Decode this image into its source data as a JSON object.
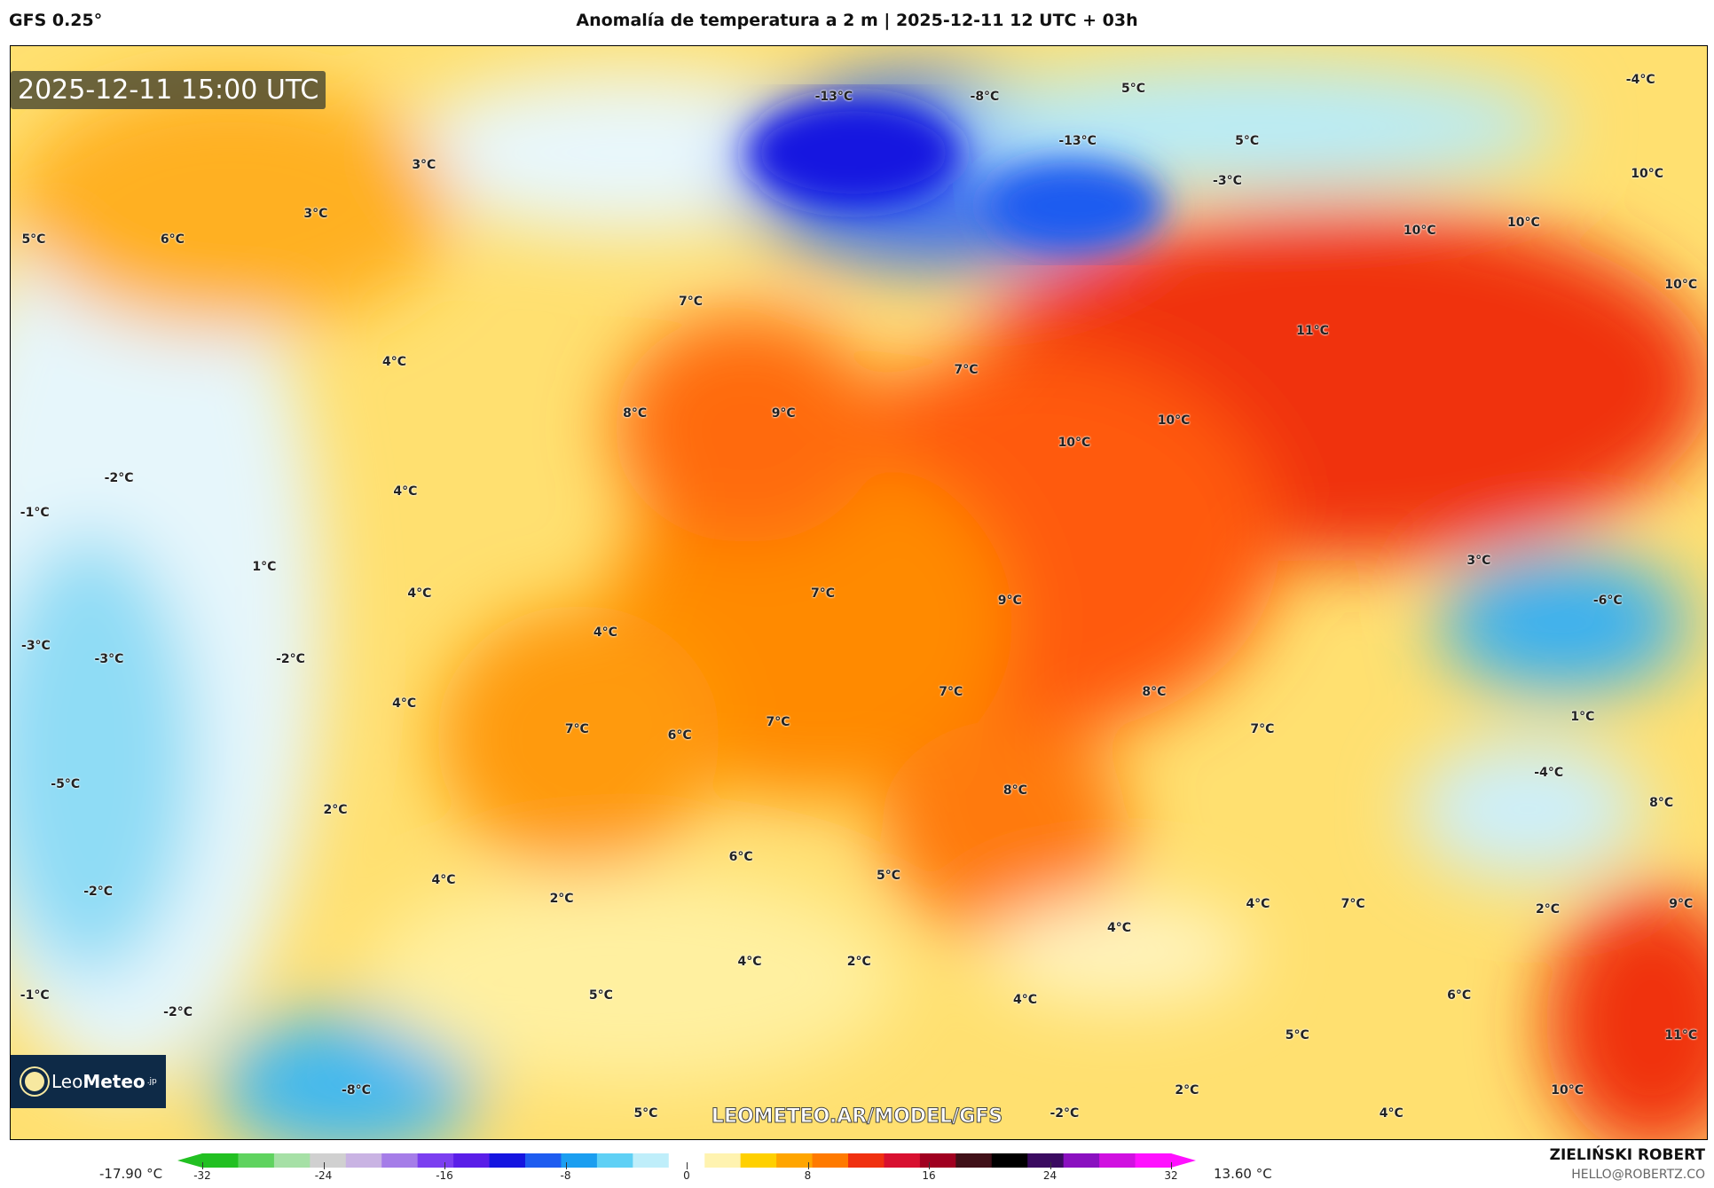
{
  "header": {
    "model": "GFS 0.25°",
    "title": "Anomalía de temperatura a 2 m | 2025-12-11 12 UTC + 03h"
  },
  "map": {
    "valid_time": "2025-12-11 15:00 UTC",
    "watermark": "LEOMETEO.AR/MODEL/GFS",
    "logo": {
      "text_light": "Leo",
      "text_bold": "Meteo",
      "suffix": ".jp"
    },
    "labels": [
      "-13°C",
      "-8°C",
      "5°C",
      "-4°C",
      "-13°C",
      "5°C",
      "-3°C",
      "10°C",
      "3°C",
      "3°C",
      "6°C",
      "5°C",
      "10°C",
      "10°C",
      "10°C",
      "7°C",
      "11°C",
      "4°C",
      "7°C",
      "8°C",
      "9°C",
      "10°C",
      "10°C",
      "-2°C",
      "4°C",
      "-1°C",
      "1°C",
      "3°C",
      "4°C",
      "7°C",
      "9°C",
      "-6°C",
      "4°C",
      "-3°C",
      "-3°C",
      "-2°C",
      "7°C",
      "8°C",
      "4°C",
      "1°C",
      "7°C",
      "6°C",
      "7°C",
      "7°C",
      "-4°C",
      "-5°C",
      "8°C",
      "8°C",
      "2°C",
      "6°C",
      "4°C",
      "5°C",
      "-2°C",
      "2°C",
      "4°C",
      "7°C",
      "2°C",
      "9°C",
      "4°C",
      "4°C",
      "2°C",
      "-1°C",
      "5°C",
      "6°C",
      "4°C",
      "-2°C",
      "5°C",
      "11°C",
      "-8°C",
      "2°C",
      "10°C",
      "5°C",
      "-2°C",
      "4°C"
    ]
  },
  "colorbar": {
    "min_label": "-17.90 °C",
    "max_label": "13.60 °C",
    "ticks": [
      "-32",
      "-24",
      "-16",
      "-8",
      "0",
      "8",
      "16",
      "24",
      "32"
    ],
    "range": [
      -32,
      32
    ],
    "colors": [
      "#22c022",
      "#5fd35f",
      "#a6e0a6",
      "#d0d0d0",
      "#c9b3e3",
      "#a57de8",
      "#7b3ff0",
      "#5a1ee8",
      "#1515e0",
      "#1e5cf0",
      "#1b9ef0",
      "#5fd0f5",
      "#bfeefa",
      "#ffffff",
      "#fff3b0",
      "#ffd000",
      "#ffa500",
      "#ff7a00",
      "#f03010",
      "#d81030",
      "#a00020",
      "#401018",
      "#000000",
      "#3a0a60",
      "#8a10c0",
      "#d010e0",
      "#ff10ff"
    ]
  },
  "credits": {
    "author": "ZIELIŃSKI ROBERT",
    "email": "HELLO@ROBERTZ.CO"
  }
}
